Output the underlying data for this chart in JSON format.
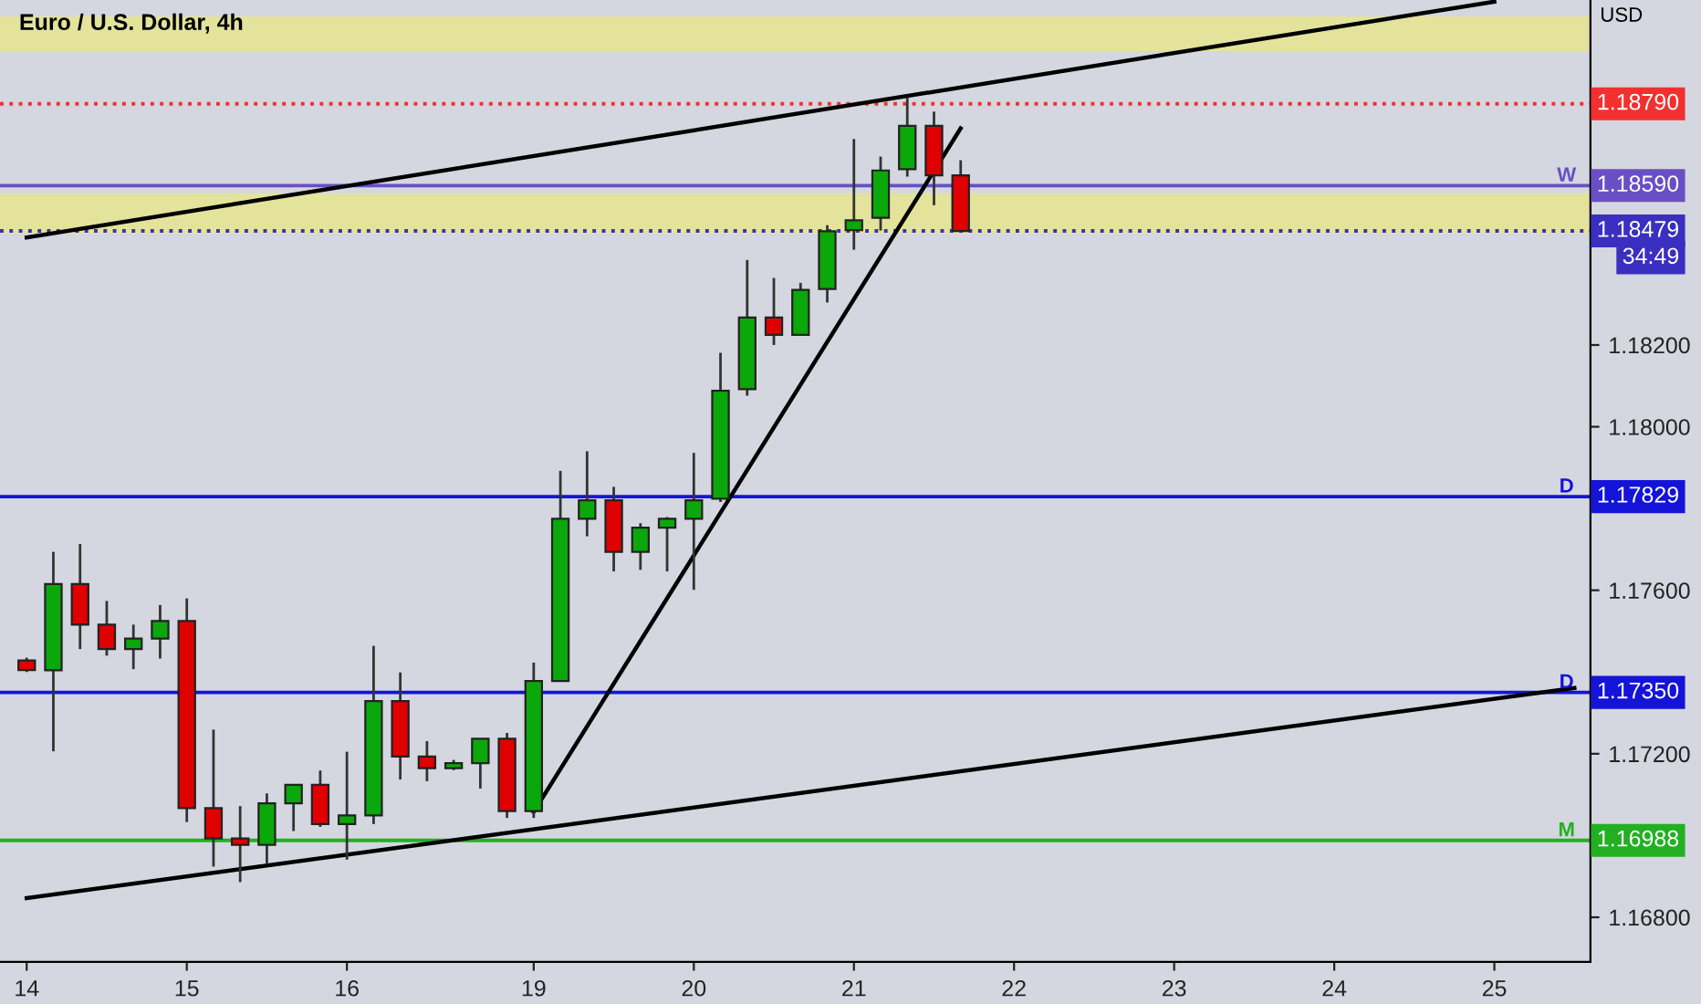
{
  "chart_data": {
    "type": "candlestick",
    "title": "Euro / U.S. Dollar, 4h",
    "ylabel": "USD",
    "categories": [
      "14",
      null,
      null,
      null,
      null,
      null,
      "15",
      null,
      null,
      null,
      null,
      null,
      "16",
      null,
      null,
      null,
      null,
      null,
      null,
      "19",
      null,
      null,
      null,
      null,
      null,
      "20",
      null,
      null,
      null,
      null,
      null,
      "21",
      null,
      null,
      null,
      null,
      null,
      "22",
      null,
      null,
      null,
      null,
      null,
      "23",
      null,
      null,
      null,
      null,
      null,
      "24",
      null,
      null,
      null,
      null,
      null,
      "25",
      null,
      null,
      null
    ],
    "ohlc": [
      [
        1.17428,
        1.17435,
        1.174,
        1.17405
      ],
      [
        1.17404,
        1.17694,
        1.17206,
        1.17615
      ],
      [
        1.17615,
        1.17713,
        1.17456,
        1.17516
      ],
      [
        1.17516,
        1.17574,
        1.1744,
        1.17456
      ],
      [
        1.17456,
        1.17516,
        1.17407,
        1.17482
      ],
      [
        1.17482,
        1.17564,
        1.17433,
        1.17525
      ],
      [
        1.17525,
        1.1758,
        1.17033,
        1.17067
      ],
      [
        1.17067,
        1.17259,
        1.16924,
        1.16993
      ],
      [
        1.16993,
        1.17072,
        1.16886,
        1.16977
      ],
      [
        1.16977,
        1.17103,
        1.1693,
        1.17079
      ],
      [
        1.17079,
        1.17124,
        1.17011,
        1.17124
      ],
      [
        1.17124,
        1.17159,
        1.17021,
        1.17028
      ],
      [
        1.17028,
        1.17205,
        1.16941,
        1.17049
      ],
      [
        1.17049,
        1.17464,
        1.17028,
        1.17329
      ],
      [
        1.17329,
        1.17399,
        1.17137,
        1.17193
      ],
      [
        1.17193,
        1.17231,
        1.17133,
        1.17165
      ],
      [
        1.17165,
        1.17185,
        1.1716,
        1.17177
      ],
      [
        1.17177,
        1.17237,
        1.17115,
        1.17237
      ],
      [
        1.17237,
        1.17251,
        1.17043,
        1.1706
      ],
      [
        1.1706,
        1.17423,
        1.17043,
        1.17378
      ],
      [
        1.17378,
        1.17892,
        1.17378,
        1.17775
      ],
      [
        1.17775,
        1.1794,
        1.17732,
        1.1782
      ],
      [
        1.1782,
        1.17853,
        1.17646,
        1.17694
      ],
      [
        1.17694,
        1.17764,
        1.1765,
        1.17753
      ],
      [
        1.17753,
        1.17779,
        1.17646,
        1.17775
      ],
      [
        1.17775,
        1.17936,
        1.17601,
        1.1782
      ],
      [
        1.17824,
        1.18181,
        1.17816,
        1.18088
      ],
      [
        1.18092,
        1.18408,
        1.18076,
        1.18267
      ],
      [
        1.18267,
        1.18364,
        1.182,
        1.18225
      ],
      [
        1.18225,
        1.18352,
        1.18225,
        1.18335
      ],
      [
        1.18337,
        1.18493,
        1.18304,
        1.18478
      ],
      [
        1.18481,
        1.18704,
        1.18433,
        1.18505
      ],
      [
        1.18511,
        1.18661,
        1.1848,
        1.18627
      ],
      [
        1.1863,
        1.18806,
        1.18612,
        1.18736
      ],
      [
        1.18736,
        1.18771,
        1.18542,
        1.18615
      ],
      [
        1.18615,
        1.18652,
        1.18479,
        1.18479
      ],
      null,
      null,
      null,
      null,
      null,
      null,
      null,
      null,
      null,
      null,
      null,
      null,
      null,
      null,
      null,
      null,
      null,
      null,
      null,
      null,
      null,
      null,
      null
    ],
    "series": [
      {
        "type": "line",
        "color": "#000000",
        "values": [
          1.18463,
          null,
          null,
          null,
          null,
          null,
          null,
          null,
          null,
          null,
          null,
          null,
          null,
          null,
          null,
          null,
          null,
          null,
          null,
          null,
          null,
          null,
          null,
          null,
          null,
          null,
          null,
          null,
          null,
          null,
          null,
          null,
          null,
          null,
          null,
          null,
          null,
          null,
          null,
          null,
          null,
          null,
          null,
          null,
          null,
          null,
          null,
          null,
          null,
          null,
          null,
          null,
          null,
          null,
          null,
          1.1904,
          null,
          null,
          null
        ]
      },
      {
        "type": "line",
        "color": "#000000",
        "values": [
          1.16847,
          null,
          null,
          null,
          null,
          null,
          null,
          null,
          null,
          null,
          null,
          null,
          null,
          null,
          null,
          null,
          null,
          null,
          null,
          null,
          null,
          null,
          null,
          null,
          null,
          null,
          null,
          null,
          null,
          null,
          null,
          null,
          null,
          null,
          null,
          null,
          null,
          null,
          null,
          null,
          null,
          null,
          null,
          null,
          null,
          null,
          null,
          null,
          null,
          null,
          null,
          null,
          null,
          null,
          null,
          null,
          null,
          null,
          1.17361
        ]
      },
      {
        "type": "line",
        "color": "#000000",
        "values": [
          null,
          null,
          null,
          null,
          null,
          null,
          null,
          null,
          null,
          null,
          null,
          null,
          null,
          null,
          null,
          null,
          null,
          null,
          null,
          1.17058,
          null,
          null,
          null,
          null,
          null,
          null,
          null,
          null,
          null,
          null,
          null,
          null,
          null,
          null,
          null,
          1.1873,
          null,
          null,
          null,
          null,
          null,
          null,
          null,
          null,
          null,
          null,
          null,
          null,
          null,
          null,
          null,
          null,
          null,
          null,
          null,
          null,
          null,
          null,
          null
        ]
      }
    ],
    "ylim": [
      1.16691,
      1.19044
    ],
    "yticks": [
      {
        "value": 1.168,
        "label": "1.16800"
      },
      {
        "value": 1.172,
        "label": "1.17200"
      },
      {
        "value": 1.176,
        "label": "1.17600"
      },
      {
        "value": 1.18,
        "label": "1.18000"
      },
      {
        "value": 1.182,
        "label": "1.18200"
      }
    ],
    "bands": [
      {
        "axis": "y",
        "from": 1.18472,
        "to": 1.18571,
        "color": "#e3e39c"
      },
      {
        "axis": "y",
        "from": 1.18919,
        "to": 1.19004,
        "color": "#e3e39c"
      }
    ],
    "ref_lines": [
      {
        "axis": "y",
        "value": 1.1879,
        "label": "1.18790",
        "color": "#f23030",
        "line_style": "dotted"
      },
      {
        "axis": "y",
        "value": 1.1859,
        "label": "1.18590",
        "color": "#6a4fc4",
        "line_style": "solid"
      },
      {
        "axis": "y",
        "value": 1.18479,
        "label": "1.18479",
        "color": "#3a2fc0",
        "line_style": "dotted"
      },
      {
        "axis": "y",
        "value": 1.17829,
        "label": "1.17829",
        "color": "#1414d8",
        "line_style": "solid"
      },
      {
        "axis": "y",
        "value": 1.1735,
        "label": "1.17350",
        "color": "#1414d8",
        "line_style": "solid"
      },
      {
        "axis": "y",
        "value": 1.16988,
        "label": "1.16988",
        "color": "#22b022",
        "line_style": "solid"
      }
    ],
    "annotations": [
      "34:49",
      {
        "text": "W",
        "y": 1.1859
      },
      {
        "text": "D",
        "y": 1.17829
      },
      {
        "text": "D",
        "y": 1.1735
      },
      {
        "text": "M",
        "y": 1.16988
      }
    ],
    "colors": [
      "#e00000",
      "#0aa80a",
      "#e00000",
      "#e00000",
      "#0aa80a",
      "#0aa80a",
      "#e00000",
      "#e00000",
      "#e00000",
      "#0aa80a",
      "#0aa80a",
      "#e00000",
      "#0aa80a",
      "#0aa80a",
      "#e00000",
      "#e00000",
      "#0aa80a",
      "#0aa80a",
      "#e00000",
      "#0aa80a",
      "#0aa80a",
      "#0aa80a",
      "#e00000",
      "#0aa80a",
      "#0aa80a",
      "#0aa80a",
      "#0aa80a",
      "#0aa80a",
      "#e00000",
      "#0aa80a",
      "#0aa80a",
      "#0aa80a",
      "#0aa80a",
      "#0aa80a",
      "#e00000",
      "#e00000",
      null,
      null,
      null,
      null,
      null,
      null,
      null,
      null,
      null,
      null,
      null,
      null,
      null,
      null,
      null,
      null,
      null,
      null,
      null,
      null,
      null,
      null,
      null
    ],
    "grid": false,
    "legend": false
  }
}
